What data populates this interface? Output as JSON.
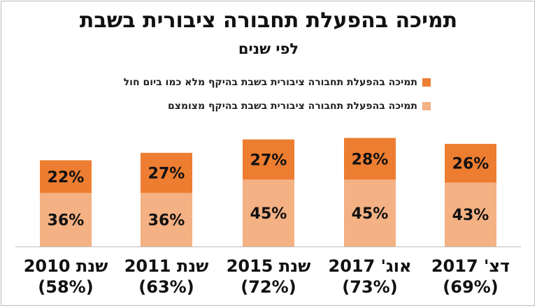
{
  "chart_data": {
    "type": "bar",
    "stacked": true,
    "title": "תמיכה בהפעלת תחבורה ציבורית בשבת",
    "subtitle": "לפי שנים",
    "categories": [
      "שנת 2010",
      "שנת 2011",
      "שנת 2015",
      "אוג' 2017",
      "דצ' 2017"
    ],
    "category_totals": [
      "(58%)",
      "(63%)",
      "(72%)",
      "(73%)",
      "(69%)"
    ],
    "series": [
      {
        "name": "תמיכה בהפעלת תחבורה ציבורית בשבת בהיקף מצומצם",
        "values": [
          36,
          36,
          45,
          45,
          43
        ],
        "labels": [
          "36%",
          "36%",
          "45%",
          "45%",
          "43%"
        ],
        "color": "#f4b183"
      },
      {
        "name": "תמיכה בהפעלת תחבורה ציבורית בשבת בהיקף מלא כמו ביום חול",
        "values": [
          22,
          27,
          27,
          28,
          26
        ],
        "labels": [
          "22%",
          "27%",
          "27%",
          "28%",
          "26%"
        ],
        "color": "#ed7d31"
      }
    ],
    "ylim": [
      0,
      80
    ],
    "grid": false,
    "legend": "top-right"
  }
}
